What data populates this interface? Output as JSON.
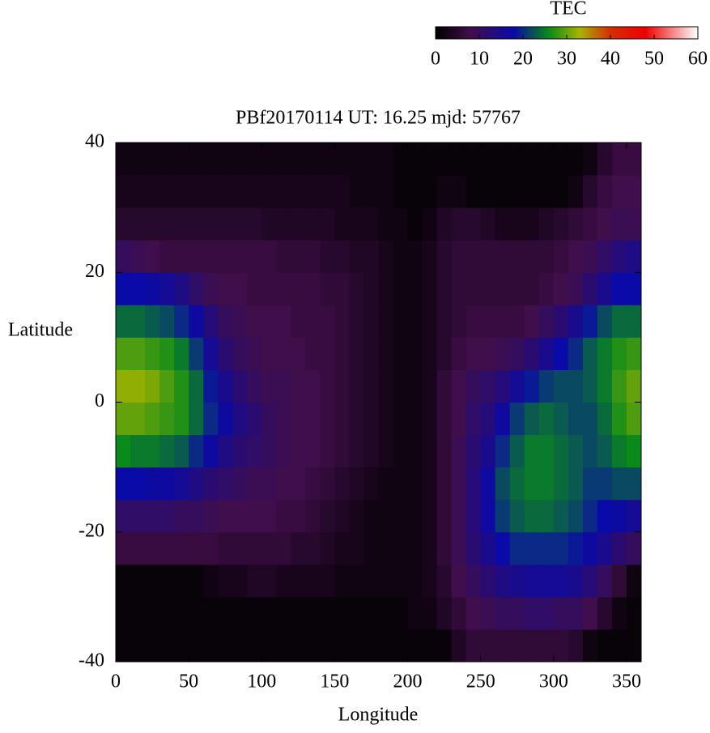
{
  "chart_data": {
    "type": "heatmap",
    "title": "PBf20170114  UT: 16.25  mjd: 57767",
    "xlabel": "Longitude",
    "ylabel": "Latitude",
    "colorbar_label": "TEC",
    "xlim": [
      0,
      360
    ],
    "xticks": [
      0,
      50,
      100,
      150,
      200,
      250,
      300,
      350
    ],
    "ylim": [
      -40,
      40
    ],
    "yticks": [
      -40,
      -20,
      0,
      20,
      40
    ],
    "clim": [
      0,
      60
    ],
    "cticks": [
      0,
      10,
      20,
      30,
      40,
      50,
      60
    ],
    "colorscale": [
      [
        0,
        "#000000"
      ],
      [
        8,
        "#400e4a"
      ],
      [
        18,
        "#0a0aa8"
      ],
      [
        26,
        "#0a8a1a"
      ],
      [
        33,
        "#a8b400"
      ],
      [
        40,
        "#d23000"
      ],
      [
        48,
        "#ee0000"
      ],
      [
        60,
        "#ffffff"
      ]
    ],
    "x": [
      5,
      15,
      25,
      35,
      45,
      55,
      65,
      75,
      85,
      95,
      105,
      115,
      125,
      135,
      145,
      155,
      165,
      175,
      185,
      195,
      205,
      215,
      225,
      235,
      245,
      255,
      265,
      275,
      285,
      295,
      305,
      315,
      325,
      335,
      345,
      355
    ],
    "y": [
      -37.5,
      -32.5,
      -27.5,
      -22.5,
      -17.5,
      -12.5,
      -7.5,
      -2.5,
      2.5,
      7.5,
      12.5,
      17.5,
      22.5,
      27.5,
      32.5,
      37.5
    ],
    "z": [
      [
        1,
        1,
        1,
        1,
        1,
        1,
        1,
        1,
        1,
        1,
        1,
        1,
        1,
        1,
        1,
        1,
        1,
        1,
        1,
        1,
        1,
        1,
        1,
        4,
        6,
        6,
        6,
        6,
        6,
        6,
        6,
        5,
        2,
        1,
        1,
        1
      ],
      [
        1,
        1,
        1,
        1,
        1,
        1,
        1,
        1,
        1,
        1,
        1,
        1,
        1,
        1,
        1,
        1,
        1,
        1,
        1,
        1,
        2,
        2,
        4,
        6,
        8,
        9,
        10,
        10,
        11,
        11,
        10,
        10,
        8,
        5,
        2,
        1
      ],
      [
        1,
        1,
        1,
        1,
        1,
        1,
        2,
        3,
        3,
        4,
        4,
        3,
        3,
        3,
        3,
        2,
        2,
        2,
        2,
        2,
        2,
        3,
        5,
        8,
        10,
        12,
        14,
        15,
        16,
        16,
        16,
        15,
        13,
        10,
        6,
        2
      ],
      [
        7,
        7,
        7,
        7,
        7,
        7,
        7,
        6,
        6,
        6,
        6,
        6,
        5,
        5,
        4,
        3,
        3,
        2,
        2,
        2,
        2,
        3,
        6,
        9,
        12,
        15,
        18,
        20,
        20,
        20,
        20,
        19,
        17,
        15,
        12,
        10
      ],
      [
        11,
        11,
        11,
        11,
        10,
        10,
        9,
        8,
        8,
        8,
        8,
        7,
        7,
        6,
        5,
        4,
        3,
        2,
        2,
        2,
        2,
        3,
        6,
        9,
        13,
        17,
        21,
        23,
        24,
        24,
        23,
        22,
        20,
        18,
        17,
        16
      ],
      [
        18,
        18,
        17,
        17,
        16,
        14,
        12,
        11,
        10,
        9,
        9,
        8,
        8,
        7,
        6,
        5,
        4,
        3,
        2,
        2,
        2,
        3,
        6,
        9,
        13,
        17,
        22,
        24,
        25,
        25,
        24,
        23,
        21,
        21,
        22,
        22
      ],
      [
        26,
        25,
        25,
        24,
        23,
        20,
        17,
        14,
        12,
        11,
        10,
        9,
        8,
        8,
        7,
        6,
        5,
        4,
        3,
        2,
        2,
        3,
        6,
        9,
        12,
        15,
        20,
        23,
        25,
        25,
        24,
        23,
        22,
        23,
        25,
        26
      ],
      [
        30,
        30,
        29,
        28,
        27,
        24,
        20,
        17,
        14,
        12,
        10,
        9,
        8,
        8,
        7,
        6,
        5,
        4,
        3,
        2,
        2,
        3,
        6,
        8,
        11,
        13,
        17,
        21,
        23,
        24,
        23,
        22,
        22,
        24,
        27,
        29
      ],
      [
        32,
        32,
        31,
        29,
        27,
        24,
        19,
        15,
        12,
        10,
        9,
        9,
        8,
        8,
        7,
        6,
        5,
        4,
        3,
        2,
        2,
        3,
        6,
        8,
        10,
        11,
        13,
        16,
        19,
        21,
        22,
        22,
        23,
        25,
        28,
        30
      ],
      [
        29,
        29,
        28,
        27,
        25,
        21,
        16,
        12,
        10,
        9,
        8,
        8,
        8,
        7,
        7,
        6,
        5,
        4,
        3,
        2,
        2,
        3,
        5,
        7,
        8,
        8,
        9,
        10,
        12,
        15,
        18,
        20,
        23,
        25,
        27,
        28
      ],
      [
        24,
        24,
        23,
        22,
        20,
        17,
        13,
        10,
        9,
        8,
        8,
        8,
        7,
        7,
        7,
        6,
        5,
        4,
        3,
        2,
        2,
        3,
        5,
        6,
        7,
        7,
        7,
        7,
        8,
        10,
        12,
        15,
        19,
        22,
        24,
        24
      ],
      [
        18,
        18,
        17,
        16,
        14,
        11,
        9,
        8,
        8,
        7,
        7,
        7,
        7,
        7,
        6,
        6,
        5,
        4,
        3,
        2,
        2,
        3,
        5,
        6,
        6,
        6,
        6,
        6,
        6,
        7,
        8,
        9,
        12,
        15,
        18,
        18
      ],
      [
        10,
        9,
        8,
        7,
        7,
        7,
        7,
        7,
        7,
        7,
        7,
        6,
        6,
        6,
        5,
        5,
        4,
        4,
        3,
        2,
        2,
        3,
        5,
        6,
        6,
        6,
        6,
        6,
        6,
        6,
        7,
        8,
        9,
        11,
        13,
        14
      ],
      [
        5,
        5,
        5,
        5,
        5,
        5,
        5,
        5,
        5,
        5,
        4,
        4,
        4,
        4,
        4,
        3,
        3,
        3,
        2,
        2,
        1,
        2,
        4,
        5,
        5,
        4,
        3,
        3,
        3,
        4,
        5,
        6,
        7,
        8,
        9,
        9
      ],
      [
        3,
        3,
        3,
        3,
        3,
        3,
        3,
        3,
        3,
        3,
        3,
        3,
        3,
        3,
        3,
        3,
        2,
        2,
        2,
        1,
        1,
        1,
        2,
        2,
        1,
        1,
        1,
        1,
        1,
        1,
        1,
        2,
        5,
        7,
        8,
        8
      ],
      [
        2,
        2,
        2,
        2,
        2,
        2,
        2,
        2,
        2,
        2,
        2,
        2,
        2,
        2,
        2,
        2,
        2,
        2,
        2,
        1,
        1,
        1,
        1,
        1,
        1,
        1,
        1,
        1,
        1,
        1,
        1,
        1,
        2,
        5,
        7,
        7
      ]
    ]
  }
}
